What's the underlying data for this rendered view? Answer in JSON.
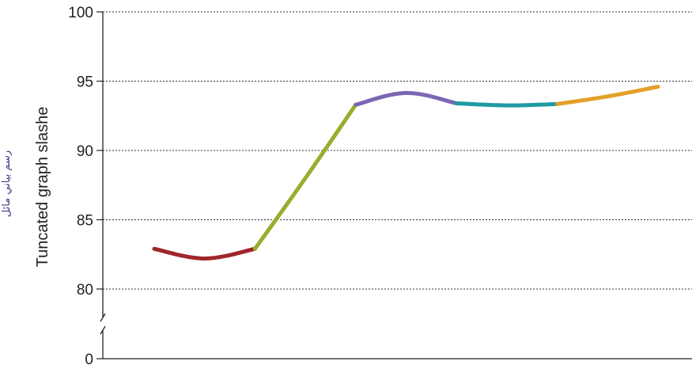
{
  "chart_data": {
    "type": "line",
    "title": "",
    "xlabel": "",
    "ylabel": "Tuncated graph slashe",
    "annotation": "رسم بياني مائل",
    "ylim": [
      80,
      100
    ],
    "axis_break": true,
    "yticks": [
      0,
      80,
      85,
      90,
      95,
      100
    ],
    "grid": "dotted horizontal",
    "series": [
      {
        "color": "#a0262a",
        "x": [
          0,
          1,
          2
        ],
        "y": [
          82.9,
          82.2,
          82.9
        ]
      },
      {
        "color": "#9aac2c",
        "x": [
          2,
          3,
          4
        ],
        "y": [
          82.9,
          88.0,
          93.3
        ]
      },
      {
        "color": "#7a66b3",
        "x": [
          4,
          5,
          6
        ],
        "y": [
          93.3,
          94.15,
          93.4
        ]
      },
      {
        "color": "#1e9aa3",
        "x": [
          6,
          7,
          8
        ],
        "y": [
          93.4,
          93.25,
          93.35
        ]
      },
      {
        "color": "#e4a02a",
        "x": [
          8,
          9,
          10
        ],
        "y": [
          93.35,
          93.9,
          94.6
        ]
      }
    ]
  }
}
